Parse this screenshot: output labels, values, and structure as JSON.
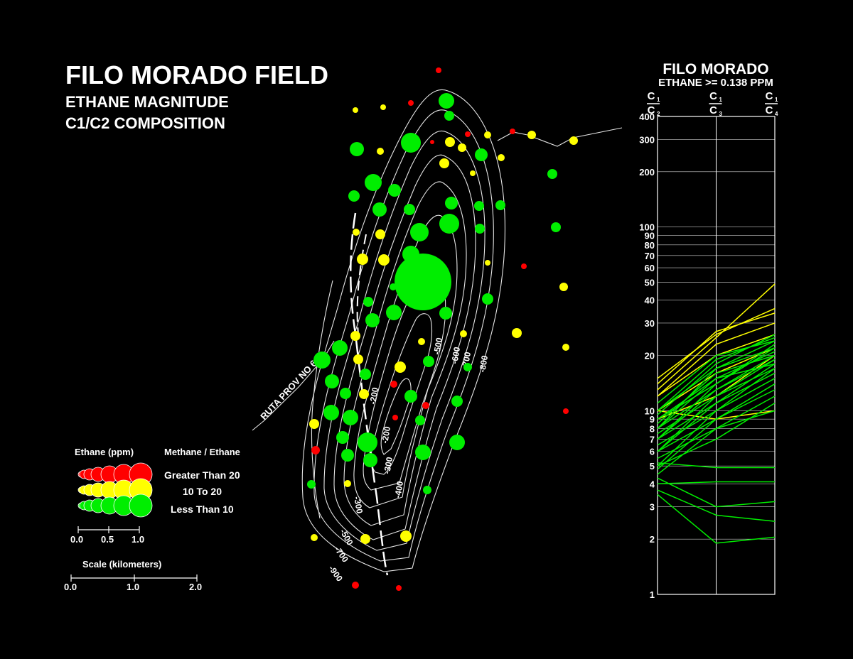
{
  "title": {
    "line1": "FILO MORADO FIELD",
    "line2": "ETHANE MAGNITUDE",
    "line3": "C1/C2 COMPOSITION"
  },
  "map": {
    "road_label": "RUTA PROV NO 6",
    "contour_labels": [
      "-200",
      "-200",
      "-300",
      "-300",
      "-400",
      "-500",
      "-600",
      "-700",
      "-800",
      "-500",
      "-700",
      "-900"
    ]
  },
  "legend": {
    "ethane_header": "Ethane  (ppm)",
    "ratio_header": "Methane / Ethane",
    "classes": [
      {
        "label": "Greater Than 20",
        "color": "#ff0000"
      },
      {
        "label": "10  To  20",
        "color": "#ffff00"
      },
      {
        "label": "Less  Than  10",
        "color": "#00ee00"
      }
    ],
    "size_ticks": [
      "0.0",
      "0.5",
      "1.0"
    ],
    "scale_title": "Scale  (kilometers)",
    "scale_ticks": [
      "0.0",
      "1.0",
      "2.0"
    ]
  },
  "chart_data": {
    "type": "line",
    "title": "FILO  MORADO",
    "subtitle": "ETHANE  >=  0.138  PPM",
    "x_categories": [
      {
        "num": "C",
        "num_sub": "1",
        "den": "C",
        "den_sub": "2"
      },
      {
        "num": "C",
        "num_sub": "1",
        "den": "C",
        "den_sub": "3"
      },
      {
        "num": "C",
        "num_sub": "1",
        "den": "C",
        "den_sub": "4"
      }
    ],
    "y_scale": "log",
    "ylim": [
      1,
      400
    ],
    "y_ticks": [
      1,
      2,
      3,
      4,
      5,
      6,
      7,
      8,
      9,
      10,
      20,
      30,
      40,
      50,
      60,
      70,
      80,
      90,
      100,
      200,
      300,
      400
    ],
    "grid": true,
    "series": [
      {
        "color": "#ffff00",
        "values": [
          15,
          26,
          36
        ]
      },
      {
        "color": "#ffff00",
        "values": [
          14,
          27,
          34
        ]
      },
      {
        "color": "#ffff00",
        "values": [
          13,
          25,
          49
        ]
      },
      {
        "color": "#ffff00",
        "values": [
          12,
          23,
          30
        ]
      },
      {
        "color": "#ffff00",
        "values": [
          12,
          20,
          26
        ]
      },
      {
        "color": "#ffff00",
        "values": [
          10,
          16,
          22
        ]
      },
      {
        "color": "#ffff00",
        "values": [
          10,
          9,
          10
        ]
      },
      {
        "color": "#ffff00",
        "values": [
          9,
          12,
          20
        ]
      },
      {
        "color": "#00ee00",
        "values": [
          11,
          20,
          24
        ]
      },
      {
        "color": "#00ee00",
        "values": [
          10,
          19,
          25
        ]
      },
      {
        "color": "#00ee00",
        "values": [
          10,
          17,
          22
        ]
      },
      {
        "color": "#00ee00",
        "values": [
          9,
          15,
          21
        ]
      },
      {
        "color": "#00ee00",
        "values": [
          9,
          14,
          23
        ]
      },
      {
        "color": "#00ee00",
        "values": [
          8.5,
          16,
          20
        ]
      },
      {
        "color": "#00ee00",
        "values": [
          8,
          13,
          19
        ]
      },
      {
        "color": "#00ee00",
        "values": [
          8,
          15,
          18
        ]
      },
      {
        "color": "#00ee00",
        "values": [
          7.5,
          12,
          17
        ]
      },
      {
        "color": "#00ee00",
        "values": [
          7,
          14,
          22
        ]
      },
      {
        "color": "#00ee00",
        "values": [
          7,
          11,
          16
        ]
      },
      {
        "color": "#00ee00",
        "values": [
          6.5,
          10,
          15
        ]
      },
      {
        "color": "#00ee00",
        "values": [
          6,
          12,
          19
        ]
      },
      {
        "color": "#00ee00",
        "values": [
          6,
          9,
          14
        ]
      },
      {
        "color": "#00ee00",
        "values": [
          5.5,
          8,
          12
        ]
      },
      {
        "color": "#00ee00",
        "values": [
          5,
          10,
          17
        ]
      },
      {
        "color": "#00ee00",
        "values": [
          5,
          7,
          11
        ]
      },
      {
        "color": "#00ee00",
        "values": [
          4.8,
          9,
          13
        ]
      },
      {
        "color": "#00ee00",
        "values": [
          4.5,
          8,
          10
        ]
      },
      {
        "color": "#00ee00",
        "values": [
          5.2,
          4.9,
          4.9
        ]
      },
      {
        "color": "#00ee00",
        "values": [
          4,
          4.1,
          4.1
        ]
      },
      {
        "color": "#00ee00",
        "values": [
          4.3,
          3,
          3.2
        ]
      },
      {
        "color": "#00ee00",
        "values": [
          3.7,
          2.7,
          2.5
        ]
      },
      {
        "color": "#00ee00",
        "values": [
          3.5,
          1.9,
          2.05
        ]
      },
      {
        "color": "#00ee00",
        "values": [
          9.5,
          18,
          26
        ]
      },
      {
        "color": "#00ee00",
        "values": [
          8,
          17,
          24
        ]
      },
      {
        "color": "#00ee00",
        "values": [
          7,
          13,
          20
        ]
      },
      {
        "color": "#00ee00",
        "values": [
          6,
          11,
          18
        ]
      }
    ]
  }
}
